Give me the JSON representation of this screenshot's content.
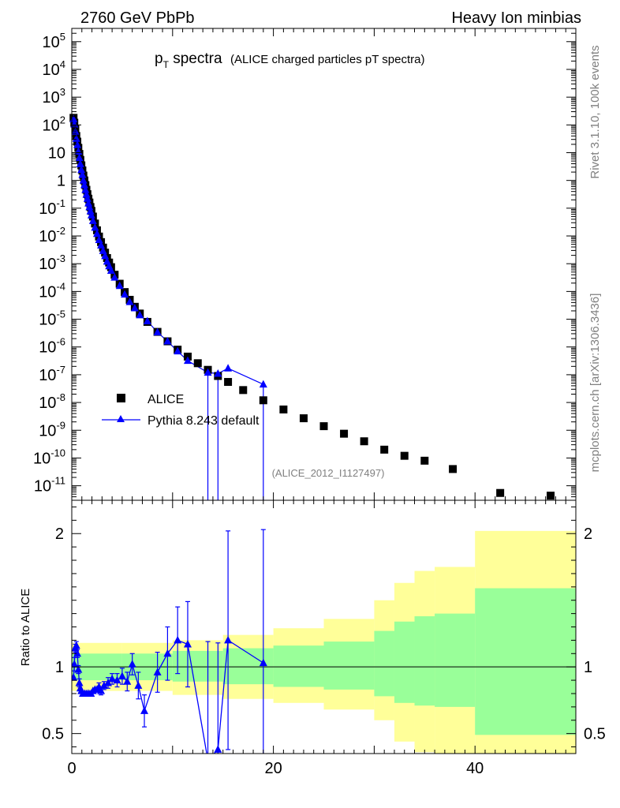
{
  "header": {
    "left": "2760 GeV PbPb",
    "right": "Heavy Ion minbias"
  },
  "side_labels": {
    "rivet": "Rivet 3.1.10,  100k events",
    "mcplots": "mcplots.cern.ch [arXiv:1306.3436]"
  },
  "plot_title": {
    "main": "p",
    "sub": "T",
    "main2": " spectra",
    "detail": "(ALICE charged particles pT spectra)"
  },
  "analysis_id": "(ALICE_2012_I1127497)",
  "chart_data": [
    {
      "type": "scatter",
      "panel": "main",
      "yscale": "log",
      "xlim": [
        0,
        50
      ],
      "ylim": [
        3e-12,
        300000
      ],
      "y_tick_labels": [
        "10^5",
        "10^4",
        "10^3",
        "10^2",
        "10",
        "1",
        "10^-1",
        "10^-2",
        "10^-3",
        "10^-4",
        "10^-5",
        "10^-6",
        "10^-7",
        "10^-8",
        "10^-9",
        "10^-10",
        "10^-11"
      ],
      "legend_placement": "lower-left",
      "series": [
        {
          "name": "ALICE",
          "color": "#000000",
          "marker": "square",
          "x": [
            0.175,
            0.25,
            0.35,
            0.45,
            0.55,
            0.65,
            0.75,
            0.85,
            0.95,
            1.05,
            1.15,
            1.25,
            1.35,
            1.45,
            1.55,
            1.65,
            1.75,
            1.85,
            1.95,
            2.1,
            2.3,
            2.5,
            2.7,
            2.9,
            3.1,
            3.3,
            3.5,
            3.7,
            3.9,
            4.25,
            4.75,
            5.25,
            5.75,
            6.25,
            6.75,
            7.5,
            8.5,
            9.5,
            10.5,
            11.5,
            12.5,
            13.5,
            14.5,
            15.5,
            17.0,
            19.0,
            21.0,
            23.0,
            25.0,
            27.0,
            29.0,
            31.0,
            33.0,
            35.0,
            37.8,
            42.5,
            47.5
          ],
          "y": [
            180,
            120,
            70,
            40,
            25,
            15,
            9,
            5.5,
            3.5,
            2.3,
            1.5,
            1.0,
            0.68,
            0.46,
            0.32,
            0.22,
            0.16,
            0.11,
            0.08,
            0.05,
            0.028,
            0.016,
            0.0095,
            0.006,
            0.0038,
            0.0025,
            0.0016,
            0.0011,
            0.00075,
            0.0004,
            0.00019,
            9.5e-05,
            5e-05,
            2.8e-05,
            1.6e-05,
            8e-06,
            3.5e-06,
            1.6e-06,
            8e-07,
            4.5e-07,
            2.6e-07,
            1.5e-07,
            9e-08,
            5.5e-08,
            2.8e-08,
            1.2e-08,
            5.6e-09,
            2.7e-09,
            1.4e-09,
            7.5e-10,
            4e-10,
            2e-10,
            1.2e-10,
            8e-11,
            4e-11,
            5.5e-12,
            4.4e-12
          ]
        },
        {
          "name": "Pythia 8.243 default",
          "color": "#0000ff",
          "marker": "triangle",
          "x": [
            0.175,
            0.25,
            0.35,
            0.45,
            0.55,
            0.65,
            0.75,
            0.85,
            0.95,
            1.05,
            1.15,
            1.25,
            1.35,
            1.45,
            1.55,
            1.65,
            1.75,
            1.85,
            1.95,
            2.1,
            2.3,
            2.5,
            2.7,
            2.9,
            3.1,
            3.3,
            3.5,
            3.7,
            3.9,
            4.25,
            4.75,
            5.25,
            5.75,
            6.25,
            6.75,
            7.5,
            8.5,
            9.5,
            10.5,
            11.5,
            13.5,
            14.5,
            15.5,
            19.0
          ],
          "y": [
            160,
            105,
            58,
            32,
            19,
            11,
            6.5,
            3.9,
            2.4,
            1.6,
            1.0,
            0.68,
            0.46,
            0.31,
            0.22,
            0.15,
            0.11,
            0.078,
            0.056,
            0.035,
            0.02,
            0.012,
            0.0072,
            0.0046,
            0.0029,
            0.0019,
            0.0012,
            0.00082,
            0.00056,
            0.00032,
            0.00016,
            7.8e-05,
            4.2e-05,
            2.5e-05,
            1.4e-05,
            8.5e-06,
            3.4e-06,
            1.6e-06,
            7e-07,
            3.2e-07,
            1.2e-07,
            1.1e-07,
            1.7e-07,
            4.5e-08
          ]
        }
      ]
    },
    {
      "type": "line",
      "panel": "ratio",
      "ylabel": "Ratio to ALICE",
      "xlim": [
        0,
        50
      ],
      "ylim": [
        0.35,
        2.25
      ],
      "x_ticks": [
        0,
        20,
        40
      ],
      "y_ticks": [
        0.5,
        1,
        2
      ],
      "reference_line": 1,
      "bands": [
        {
          "color": "#ffff99",
          "description": "total uncertainty",
          "x": [
            0,
            5,
            10,
            15,
            20,
            25,
            30,
            32,
            34,
            36,
            40,
            50
          ],
          "lo": [
            0.82,
            0.82,
            0.79,
            0.76,
            0.73,
            0.68,
            0.6,
            0.44,
            0.36,
            0.33,
            0.33,
            0.33
          ],
          "hi": [
            1.18,
            1.18,
            1.2,
            1.24,
            1.29,
            1.36,
            1.5,
            1.63,
            1.72,
            1.75,
            2.02,
            2.02
          ]
        },
        {
          "color": "#99ff99",
          "description": "statistical uncertainty",
          "x": [
            0,
            5,
            10,
            15,
            20,
            25,
            30,
            32,
            34,
            36,
            40,
            50
          ],
          "lo": [
            0.9,
            0.9,
            0.89,
            0.87,
            0.85,
            0.83,
            0.78,
            0.73,
            0.71,
            0.7,
            0.49,
            0.49
          ],
          "hi": [
            1.1,
            1.1,
            1.12,
            1.14,
            1.16,
            1.19,
            1.27,
            1.34,
            1.38,
            1.4,
            1.59,
            1.59
          ]
        }
      ],
      "series": [
        {
          "name": "Pythia 8.243 default",
          "color": "#0000ff",
          "x": [
            0.175,
            0.25,
            0.35,
            0.45,
            0.55,
            0.65,
            0.75,
            0.85,
            0.95,
            1.1,
            1.3,
            1.5,
            1.7,
            1.9,
            2.1,
            2.3,
            2.5,
            2.7,
            2.9,
            3.2,
            3.6,
            4.0,
            4.5,
            5.0,
            5.5,
            6.0,
            6.6,
            7.2,
            8.5,
            9.5,
            10.5,
            11.5,
            13.5,
            14.5,
            15.5,
            19.0
          ],
          "y": [
            0.92,
            1.02,
            1.14,
            1.16,
            1.1,
            0.98,
            0.88,
            0.84,
            0.82,
            0.8,
            0.8,
            0.8,
            0.8,
            0.8,
            0.82,
            0.83,
            0.83,
            0.85,
            0.82,
            0.86,
            0.88,
            0.91,
            0.9,
            0.93,
            0.89,
            1.02,
            0.86,
            0.67,
            0.96,
            1.1,
            1.2,
            1.17,
            0.29,
            0.38,
            1.2,
            1.03
          ],
          "err": [
            0.0,
            0.05,
            0.03,
            0.03,
            0.03,
            0.03,
            0.03,
            0.02,
            0.02,
            0.02,
            0.02,
            0.02,
            0.02,
            0.02,
            0.02,
            0.02,
            0.02,
            0.03,
            0.03,
            0.03,
            0.04,
            0.04,
            0.05,
            0.06,
            0.07,
            0.08,
            0.1,
            0.12,
            0.15,
            0.2,
            0.25,
            0.32,
            0.9,
            0.8,
            0.82,
            1.0
          ]
        }
      ]
    }
  ]
}
